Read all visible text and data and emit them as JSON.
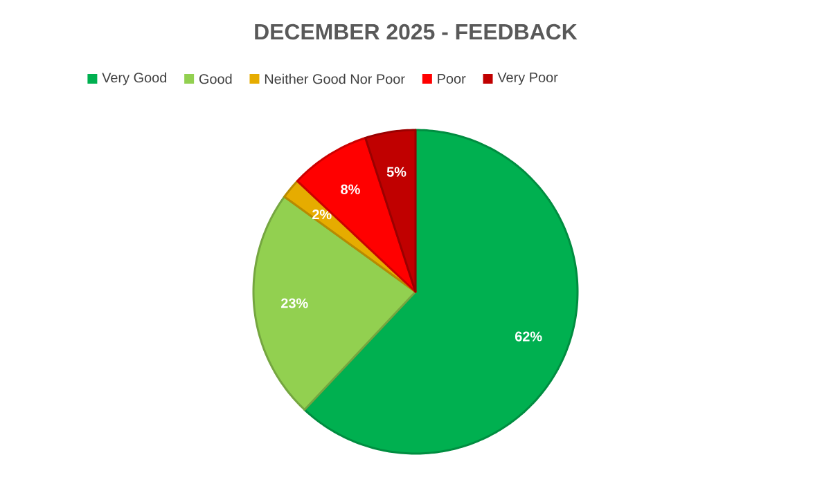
{
  "chart_data": {
    "type": "pie",
    "title": "DECEMBER 2025 - FEEDBACK",
    "categories": [
      "Very Good",
      "Good",
      "Neither Good Nor Poor",
      "Poor",
      "Very Poor"
    ],
    "values": [
      62,
      23,
      2,
      8,
      5
    ],
    "colors": [
      "#00b050",
      "#92d050",
      "#e6ac00",
      "#ff0000",
      "#c00000"
    ],
    "value_labels": [
      "62%",
      "23%",
      "2%",
      "8%",
      "5%"
    ],
    "legend": "top"
  }
}
